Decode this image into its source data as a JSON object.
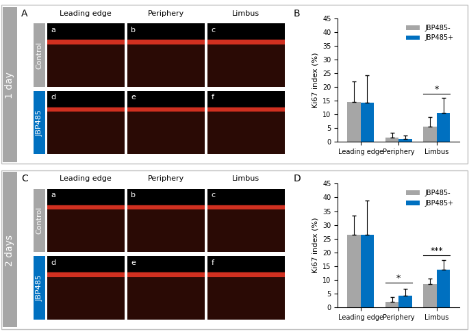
{
  "panels": [
    {
      "time": "1 day",
      "image_panel": {
        "letter": "A",
        "columns": [
          "Leading edge",
          "Periphery",
          "Limbus"
        ],
        "rows": [
          "Control",
          "JBP485"
        ],
        "subpanels": [
          "a",
          "b",
          "c",
          "d",
          "e",
          "f"
        ]
      },
      "chart_letter": "B"
    },
    {
      "time": "2 days",
      "image_panel": {
        "letter": "C",
        "columns": [
          "Leading edge",
          "Periphery",
          "Limbus"
        ],
        "rows": [
          "Control",
          "JBP485"
        ],
        "subpanels": [
          "a",
          "b",
          "c",
          "d",
          "e",
          "f"
        ]
      },
      "chart_letter": "D"
    }
  ],
  "chart_data": [
    {
      "type": "bar",
      "y_label": "Ki67 index (%)",
      "categories": [
        "Leading edge",
        "Periphery",
        "Limbus"
      ],
      "series": [
        {
          "name": "JBP485-",
          "color": "#a6a6a6",
          "values": [
            14.5,
            1.5,
            5.5
          ],
          "errors": [
            7.5,
            1.8,
            3.5
          ]
        },
        {
          "name": "JBP485+",
          "color": "#0070c0",
          "values": [
            14.3,
            1.2,
            10.5
          ],
          "errors": [
            10.0,
            1.2,
            5.5
          ]
        }
      ],
      "ylim": [
        0,
        45
      ],
      "yticks": [
        0,
        5,
        10,
        15,
        20,
        25,
        30,
        35,
        40,
        45
      ],
      "legend": "upper right",
      "annotations": [
        {
          "category": "Limbus",
          "text": "*",
          "y": 17.5
        }
      ]
    },
    {
      "type": "bar",
      "y_label": "Ki67 index (%)",
      "categories": [
        "Leading edge",
        "Periphery",
        "Limbus"
      ],
      "series": [
        {
          "name": "JBP485-",
          "color": "#a6a6a6",
          "values": [
            26.5,
            2.0,
            8.5
          ],
          "errors": [
            7.0,
            1.8,
            2.0
          ]
        },
        {
          "name": "JBP485+",
          "color": "#0070c0",
          "values": [
            26.5,
            4.3,
            13.8
          ],
          "errors": [
            12.3,
            2.5,
            3.5
          ]
        }
      ],
      "ylim": [
        0,
        45
      ],
      "yticks": [
        0,
        5,
        10,
        15,
        20,
        25,
        30,
        35,
        40,
        45
      ],
      "legend": "upper right",
      "annotations": [
        {
          "category": "Periphery",
          "text": "*",
          "y": 9.0
        },
        {
          "category": "Limbus",
          "text": "***",
          "y": 19.0
        }
      ]
    }
  ]
}
